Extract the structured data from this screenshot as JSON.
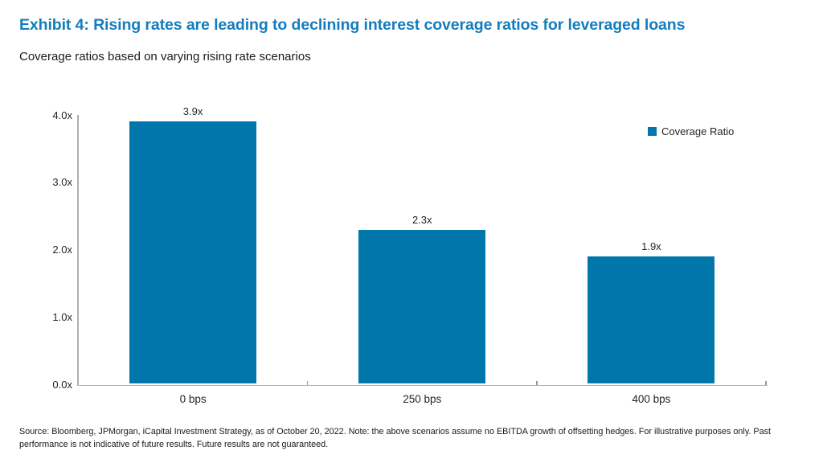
{
  "page": {
    "title": "Exhibit 4: Rising rates are leading to declining interest coverage ratios for leveraged loans",
    "subtitle": "Coverage ratios based on varying rising rate scenarios",
    "footnote": "Source: Bloomberg, JPMorgan, iCapital Investment Strategy, as of October 20, 2022. Note: the above scenarios assume no EBITDA growth of offsetting hedges. For illustrative purposes only. Past performance is not indicative of future results. Future results are not guaranteed."
  },
  "legend": {
    "label": "Coverage Ratio"
  },
  "colors": {
    "title": "#137DBF",
    "bar": "#0076AB",
    "axis": "#AFAFAF",
    "text": "#262626"
  },
  "chart_data": {
    "type": "bar",
    "title": "Exhibit 4: Rising rates are leading to declining interest coverage ratios for leveraged loans",
    "subtitle": "Coverage ratios based on varying rising rate scenarios",
    "series_name": "Coverage Ratio",
    "categories": [
      "0 bps",
      "250 bps",
      "400 bps"
    ],
    "values": [
      3.9,
      2.3,
      1.9
    ],
    "value_labels": [
      "3.9x",
      "2.3x",
      "1.9x"
    ],
    "xlabel": "",
    "ylabel": "",
    "ylim": [
      0,
      4
    ],
    "yticks": [
      {
        "value": 0,
        "label": "0.0x"
      },
      {
        "value": 1,
        "label": "1.0x"
      },
      {
        "value": 2,
        "label": "2.0x"
      },
      {
        "value": 3,
        "label": "3.0x"
      },
      {
        "value": 4,
        "label": "4.0x"
      }
    ],
    "grid": false,
    "legend_position": "top-right"
  }
}
